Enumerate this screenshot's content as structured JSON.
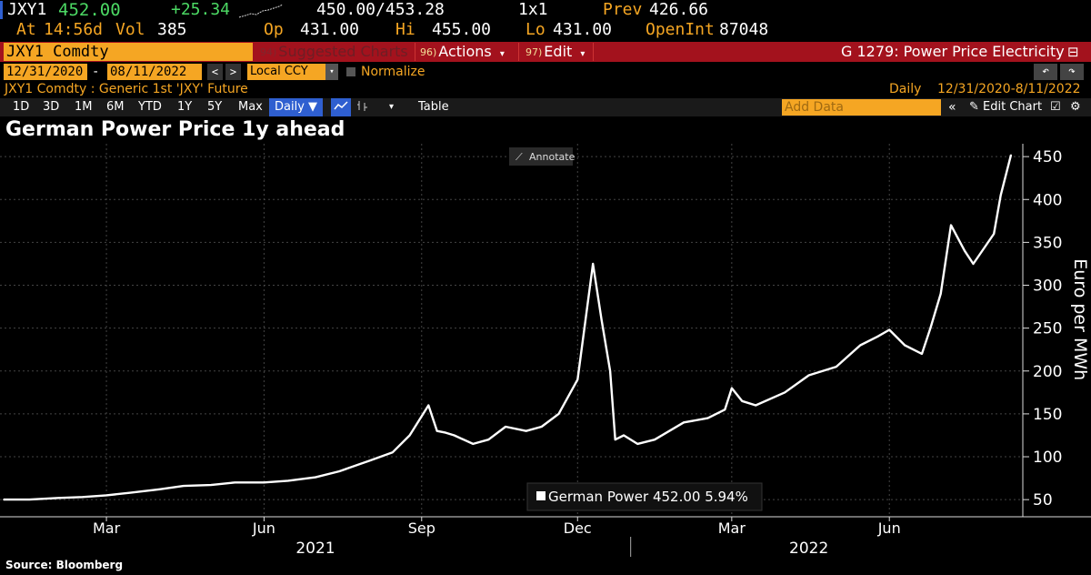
{
  "header": {
    "ticker": "JXY1",
    "last": "452.00",
    "change": "+25.34",
    "bidask": "450.00/453.28",
    "size": "1x1",
    "prev_label": "Prev",
    "prev": "426.66",
    "at_label": "At",
    "time": "14:56d",
    "vol_label": "Vol",
    "vol": "385",
    "op_label": "Op",
    "op": "431.00",
    "hi_label": "Hi",
    "hi": "455.00",
    "lo_label": "Lo",
    "lo": "431.00",
    "oi_label": "OpenInt",
    "oi": "87048"
  },
  "commandbar": {
    "security": "JXY1 Comdty",
    "suggested_num": "94)",
    "suggested": "Suggested Charts",
    "actions_num": "96)",
    "actions": "Actions",
    "edit_num": "97)",
    "edit": "Edit",
    "page_title": "G 1279: Power Price Electricity"
  },
  "range": {
    "start": "12/31/2020",
    "end": "08/11/2022",
    "currency": "Local CCY",
    "normalize": "Normalize",
    "description": "JXY1 Comdty : Generic 1st 'JXY' Future",
    "freq_label": "Daily",
    "freq_range": "12/31/2020-8/11/2022"
  },
  "toolbar": {
    "periods": [
      "1D",
      "3D",
      "1M",
      "6M",
      "YTD",
      "1Y",
      "5Y",
      "Max"
    ],
    "frequency": "Daily",
    "table": "Table",
    "add_data_placeholder": "Add Data",
    "edit_chart": "Edit Chart"
  },
  "annotate": "Annotate",
  "legend_label": "German Power 452.00  5.94%",
  "source": "Source: Bloomberg",
  "colors": {
    "amber": "#f5a623",
    "red_bar": "#a3121d",
    "up": "#4cd964",
    "line": "#ffffff"
  },
  "chart_data": {
    "type": "line",
    "title": "German Power Price 1y ahead",
    "ylabel": "Euro per MWh",
    "xlabel": "",
    "ylim": [
      30,
      465
    ],
    "yticks": [
      50,
      100,
      150,
      200,
      250,
      300,
      350,
      400,
      450
    ],
    "xlim": [
      "2020-12-31",
      "2022-08-11"
    ],
    "xtick_labels": [
      {
        "date": "2021-03-01",
        "label": "Mar"
      },
      {
        "date": "2021-06-01",
        "label": "Jun"
      },
      {
        "date": "2021-09-01",
        "label": "Sep"
      },
      {
        "date": "2021-12-01",
        "label": "Dec"
      },
      {
        "date": "2022-03-01",
        "label": "Mar"
      },
      {
        "date": "2022-06-01",
        "label": "Jun"
      }
    ],
    "year_labels": [
      {
        "date": "2021-07-01",
        "label": "2021"
      },
      {
        "date": "2022-04-15",
        "label": "2022"
      }
    ],
    "year_divider": "2022-01-01",
    "grid": true,
    "legend": "bottom-center",
    "series": [
      {
        "name": "German Power",
        "x": [
          "2020-12-31",
          "2021-01-15",
          "2021-02-01",
          "2021-02-15",
          "2021-03-01",
          "2021-03-15",
          "2021-04-01",
          "2021-04-15",
          "2021-05-01",
          "2021-05-15",
          "2021-06-01",
          "2021-06-15",
          "2021-07-01",
          "2021-07-15",
          "2021-08-01",
          "2021-08-15",
          "2021-08-25",
          "2021-09-05",
          "2021-09-10",
          "2021-09-15",
          "2021-09-20",
          "2021-10-01",
          "2021-10-10",
          "2021-10-20",
          "2021-11-01",
          "2021-11-10",
          "2021-11-20",
          "2021-12-01",
          "2021-12-10",
          "2021-12-15",
          "2021-12-20",
          "2021-12-23",
          "2021-12-28",
          "2022-01-05",
          "2022-01-15",
          "2022-02-01",
          "2022-02-15",
          "2022-02-25",
          "2022-03-01",
          "2022-03-07",
          "2022-03-15",
          "2022-04-01",
          "2022-04-15",
          "2022-05-01",
          "2022-05-15",
          "2022-05-25",
          "2022-06-01",
          "2022-06-10",
          "2022-06-20",
          "2022-06-25",
          "2022-07-01",
          "2022-07-07",
          "2022-07-15",
          "2022-07-20",
          "2022-08-01",
          "2022-08-05",
          "2022-08-11"
        ],
        "y": [
          50,
          50,
          52,
          53,
          55,
          58,
          62,
          66,
          67,
          70,
          70,
          72,
          76,
          83,
          95,
          105,
          125,
          160,
          130,
          128,
          125,
          115,
          120,
          135,
          130,
          135,
          150,
          190,
          325,
          260,
          200,
          120,
          125,
          115,
          120,
          140,
          145,
          155,
          180,
          165,
          160,
          175,
          195,
          205,
          230,
          240,
          248,
          230,
          220,
          250,
          290,
          370,
          340,
          325,
          360,
          405,
          452
        ]
      }
    ]
  }
}
